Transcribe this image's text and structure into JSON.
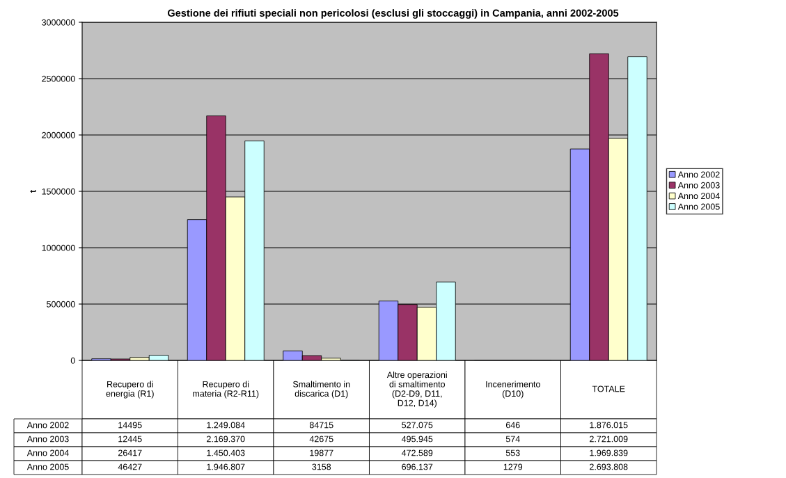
{
  "chart_data": {
    "type": "bar",
    "title": "Gestione dei rifiuti speciali non pericolosi (esclusi gli stoccaggi) in Campania, anni 2002-2005",
    "ylabel": "t",
    "categories": [
      "Recupero di energia (R1)",
      "Recupero di materia (R2-R11)",
      "Smaltimento in discarica (D1)",
      "Altre operazioni di smaltimento (D2-D9, D11, D12, D14)",
      "Incenerimento (D10)",
      "TOTALE"
    ],
    "series": [
      {
        "name": "Anno 2002",
        "color": "#9999ff",
        "values": [
          14495,
          1249084,
          84715,
          527075,
          646,
          1876015
        ],
        "value_labels": [
          "14495",
          "1.249.084",
          "84715",
          "527.075",
          "646",
          "1.876.015"
        ]
      },
      {
        "name": "Anno 2003",
        "color": "#993366",
        "values": [
          12445,
          2169370,
          42675,
          495945,
          574,
          2721009
        ],
        "value_labels": [
          "12445",
          "2.169.370",
          "42675",
          "495.945",
          "574",
          "2.721.009"
        ]
      },
      {
        "name": "Anno 2004",
        "color": "#ffffcc",
        "values": [
          26417,
          1450403,
          19877,
          472589,
          553,
          1969839
        ],
        "value_labels": [
          "26417",
          "1.450.403",
          "19877",
          "472.589",
          "553",
          "1.969.839"
        ]
      },
      {
        "name": "Anno 2005",
        "color": "#ccffff",
        "values": [
          46427,
          1946807,
          3158,
          696137,
          1279,
          2693808
        ],
        "value_labels": [
          "46427",
          "1.946.807",
          "3158",
          "696.137",
          "1279",
          "2.693.808"
        ]
      }
    ],
    "ylim": [
      0,
      3000000
    ],
    "yticks": [
      0,
      500000,
      1000000,
      1500000,
      2000000,
      2500000,
      3000000
    ],
    "grid": "y",
    "legend": "right"
  }
}
